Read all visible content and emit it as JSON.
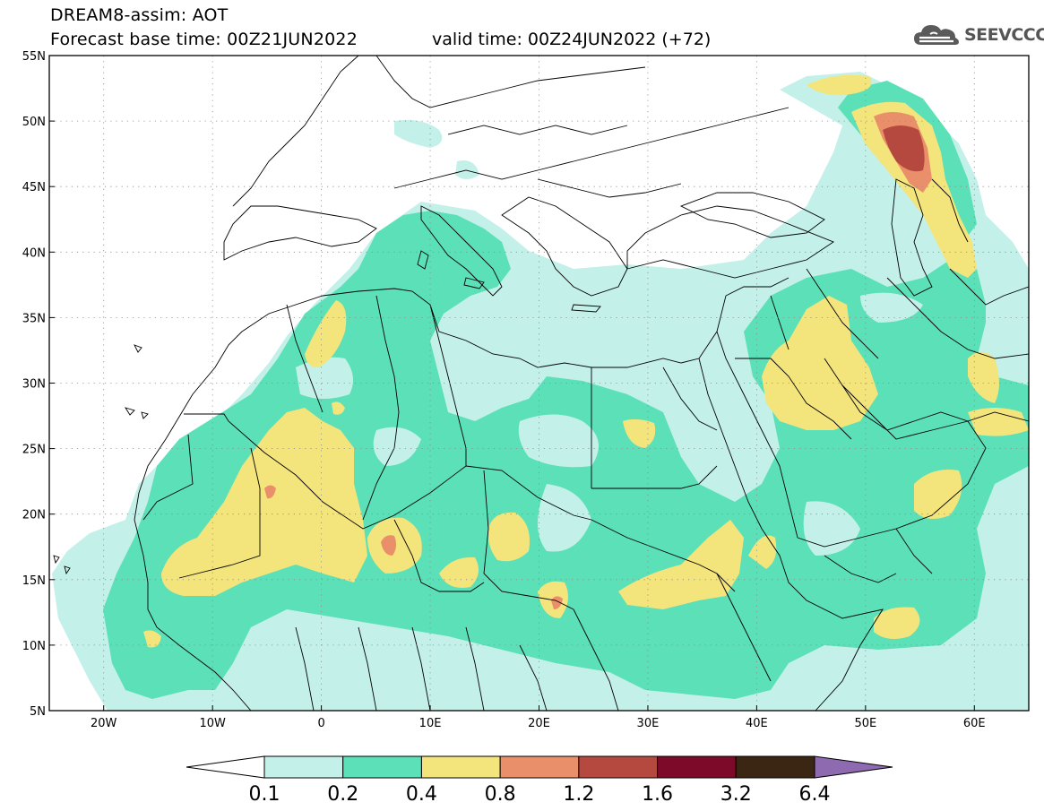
{
  "header": {
    "title_line1": "DREAM8-assim: AOT",
    "base_time": "Forecast base time: 00Z21JUN2022",
    "valid_time": "valid time: 00Z24JUN2022 (+72)"
  },
  "logo": {
    "text": "SEEVCCC",
    "icon": "cloud-icon"
  },
  "axes": {
    "lon_range": [
      -25,
      65
    ],
    "lat_range": [
      5,
      55
    ],
    "lon_ticks": [
      "20W",
      "10W",
      "0",
      "10E",
      "20E",
      "30E",
      "40E",
      "50E",
      "60E"
    ],
    "lat_ticks": [
      "55N",
      "50N",
      "45N",
      "40N",
      "35N",
      "30N",
      "25N",
      "20N",
      "15N",
      "10N",
      "5N"
    ]
  },
  "colorbar": {
    "labels": [
      "0.1",
      "0.2",
      "0.4",
      "0.8",
      "1.2",
      "1.6",
      "3.2",
      "6.4"
    ],
    "colors": [
      "#ffffff",
      "#c4f0ea",
      "#5be0b8",
      "#f4e47c",
      "#e9906a",
      "#b5493f",
      "#7d0a28",
      "#3b2614",
      "#8e6bb0"
    ]
  }
}
